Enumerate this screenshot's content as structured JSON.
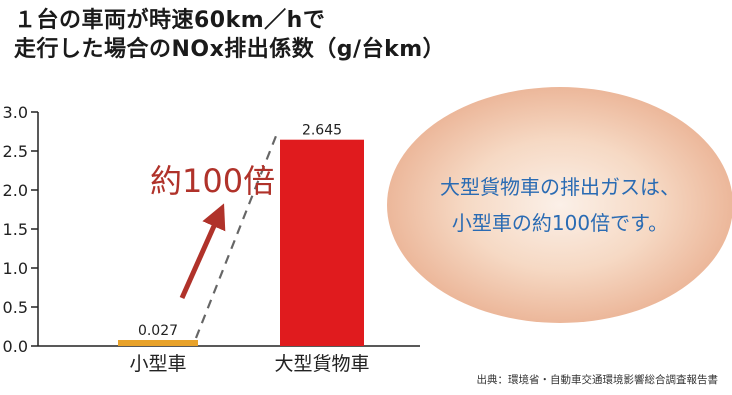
{
  "title_lines": [
    "１台の車両が時速60km／hで",
    "走行した場合のNOx排出係数（g/台km）"
  ],
  "chart_data": {
    "type": "bar",
    "title": "１台の車両が時速60km／hで走行した場合のNOx排出係数（g/台km）",
    "categories": [
      "小型車",
      "大型貨物車"
    ],
    "values": [
      0.027,
      2.645
    ],
    "value_labels": [
      "0.027",
      "2.645"
    ],
    "yticks": [
      "0.0",
      "0.5",
      "1.0",
      "1.5",
      "2.0",
      "2.5",
      "3.0"
    ],
    "ylim": [
      0,
      3.0
    ],
    "xlabel": "",
    "ylabel": "",
    "bar_colors": [
      "#e8a22a",
      "#e01b1e"
    ],
    "grid": false
  },
  "annotation": {
    "label": "約100倍",
    "color": "#b0322a"
  },
  "callout": {
    "lines": [
      "大型貨物車の排出ガスは、",
      "小型車の約100倍です。"
    ],
    "text_color": "#2a6bb3"
  },
  "source": "出典：環境省・自動車交通環境影響総合調査報告書"
}
